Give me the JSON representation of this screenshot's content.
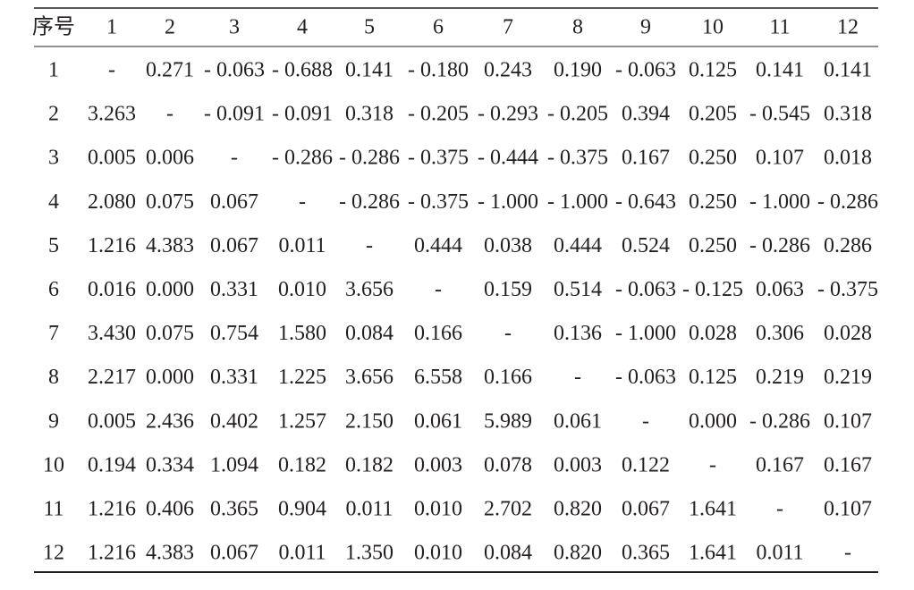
{
  "table": {
    "header": [
      "序号",
      "1",
      "2",
      "3",
      "4",
      "5",
      "6",
      "7",
      "8",
      "9",
      "10",
      "11",
      "12"
    ],
    "rows": [
      [
        "1",
        "-",
        "0.271",
        "- 0.063",
        "- 0.688",
        "0.141",
        "- 0.180",
        "0.243",
        "0.190",
        "- 0.063",
        "0.125",
        "0.141",
        "0.141"
      ],
      [
        "2",
        "3.263",
        "-",
        "- 0.091",
        "- 0.091",
        "0.318",
        "- 0.205",
        "- 0.293",
        "- 0.205",
        "0.394",
        "0.205",
        "- 0.545",
        "0.318"
      ],
      [
        "3",
        "0.005",
        "0.006",
        "-",
        "- 0.286",
        "- 0.286",
        "- 0.375",
        "- 0.444",
        "- 0.375",
        "0.167",
        "0.250",
        "0.107",
        "0.018"
      ],
      [
        "4",
        "2.080",
        "0.075",
        "0.067",
        "-",
        "- 0.286",
        "- 0.375",
        "- 1.000",
        "- 1.000",
        "- 0.643",
        "0.250",
        "- 1.000",
        "- 0.286"
      ],
      [
        "5",
        "1.216",
        "4.383",
        "0.067",
        "0.011",
        "-",
        "0.444",
        "0.038",
        "0.444",
        "0.524",
        "0.250",
        "- 0.286",
        "0.286"
      ],
      [
        "6",
        "0.016",
        "0.000",
        "0.331",
        "0.010",
        "3.656",
        "-",
        "0.159",
        "0.514",
        "- 0.063",
        "- 0.125",
        "0.063",
        "- 0.375"
      ],
      [
        "7",
        "3.430",
        "0.075",
        "0.754",
        "1.580",
        "0.084",
        "0.166",
        "-",
        "0.136",
        "- 1.000",
        "0.028",
        "0.306",
        "0.028"
      ],
      [
        "8",
        "2.217",
        "0.000",
        "0.331",
        "1.225",
        "3.656",
        "6.558",
        "0.166",
        "-",
        "- 0.063",
        "0.125",
        "0.219",
        "0.219"
      ],
      [
        "9",
        "0.005",
        "2.436",
        "0.402",
        "1.257",
        "2.150",
        "0.061",
        "5.989",
        "0.061",
        "-",
        "0.000",
        "- 0.286",
        "0.107"
      ],
      [
        "10",
        "0.194",
        "0.334",
        "1.094",
        "0.182",
        "0.182",
        "0.003",
        "0.078",
        "0.003",
        "0.122",
        "-",
        "0.167",
        "0.167"
      ],
      [
        "11",
        "1.216",
        "0.406",
        "0.365",
        "0.904",
        "0.011",
        "0.010",
        "2.702",
        "0.820",
        "0.067",
        "1.641",
        "-",
        "0.107"
      ],
      [
        "12",
        "1.216",
        "4.383",
        "0.067",
        "0.011",
        "1.350",
        "0.010",
        "0.084",
        "0.820",
        "0.365",
        "1.641",
        "0.011",
        "-"
      ]
    ]
  }
}
